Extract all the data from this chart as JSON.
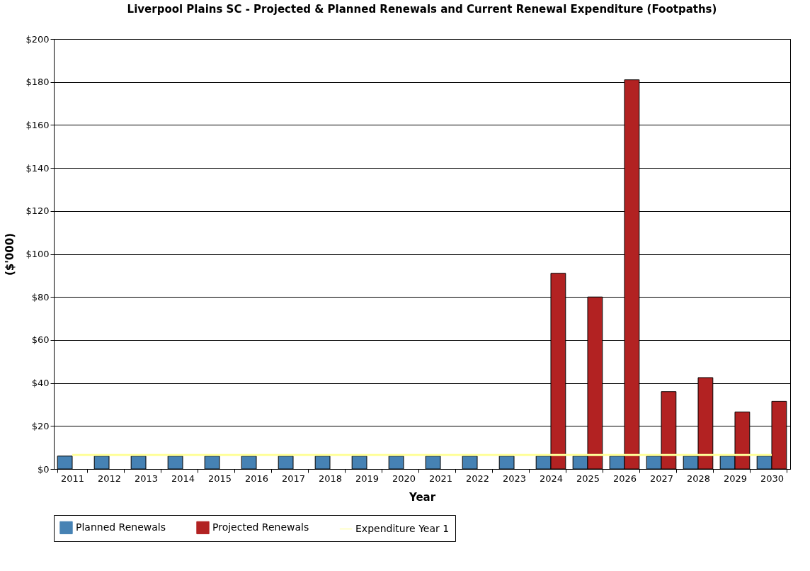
{
  "chart_data": {
    "type": "bar",
    "title": "Liverpool Plains SC - Projected & Planned Renewals and Current Renewal Expenditure (Footpaths)",
    "xlabel": "Year",
    "ylabel": "($'000)",
    "categories": [
      "2011",
      "2012",
      "2013",
      "2014",
      "2015",
      "2016",
      "2017",
      "2018",
      "2019",
      "2020",
      "2021",
      "2022",
      "2023",
      "2024",
      "2025",
      "2026",
      "2027",
      "2028",
      "2029",
      "2030"
    ],
    "series": [
      {
        "name": "Planned Renewals",
        "color": "#4682b4",
        "values": [
          6,
          6,
          6,
          6,
          6,
          6,
          6,
          6,
          6,
          6,
          6,
          6,
          6,
          6,
          6,
          6,
          6,
          6,
          6,
          6
        ]
      },
      {
        "name": "Projected Renewals",
        "color": "#b22222",
        "values": [
          null,
          null,
          null,
          null,
          null,
          null,
          null,
          null,
          null,
          null,
          null,
          null,
          null,
          91,
          80,
          181,
          36,
          42.5,
          26.5,
          31.5
        ]
      },
      {
        "name": "Expenditure Year 1",
        "type": "line",
        "color": "#ffff99",
        "values": [
          6.5,
          6.5,
          6.5,
          6.5,
          6.5,
          6.5,
          6.5,
          6.5,
          6.5,
          6.5,
          6.5,
          6.5,
          6.5,
          6.5,
          6.5,
          6.5,
          6.5,
          6.5,
          6.5,
          6.5
        ]
      }
    ],
    "ylim": [
      0,
      200
    ],
    "yticks": [
      {
        "value": 0,
        "label": "$0"
      },
      {
        "value": 20,
        "label": "$20"
      },
      {
        "value": 40,
        "label": "$40"
      },
      {
        "value": 60,
        "label": "$60"
      },
      {
        "value": 80,
        "label": "$80"
      },
      {
        "value": 100,
        "label": "$100"
      },
      {
        "value": 120,
        "label": "$120"
      },
      {
        "value": 140,
        "label": "$140"
      },
      {
        "value": 160,
        "label": "$160"
      },
      {
        "value": 180,
        "label": "$180"
      },
      {
        "value": 200,
        "label": "$200"
      }
    ],
    "grid": "y",
    "legend": "bottom"
  }
}
